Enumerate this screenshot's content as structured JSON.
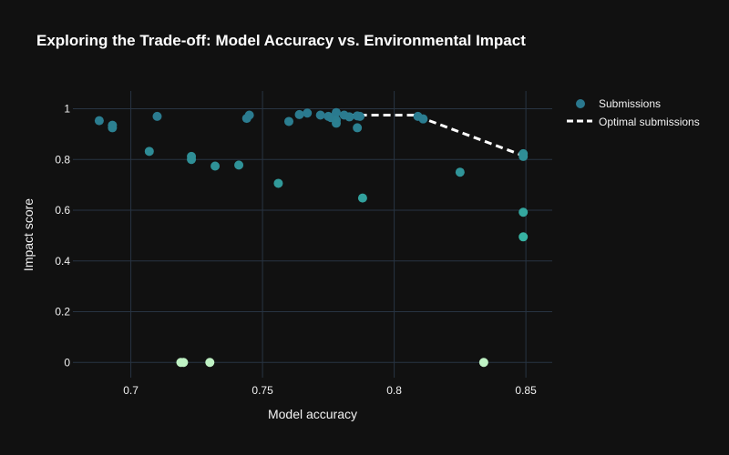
{
  "chart_data": {
    "type": "scatter",
    "title": "Exploring the Trade-off: Model Accuracy vs. Environmental Impact",
    "xlabel": "Model accuracy",
    "ylabel": "Impact score",
    "xlim": [
      0.678,
      0.86
    ],
    "ylim": [
      -0.06,
      1.07
    ],
    "x_ticks": [
      0.7,
      0.75,
      0.8,
      0.85
    ],
    "x_tick_labels": [
      "0.7",
      "0.75",
      "0.8",
      "0.85"
    ],
    "y_ticks": [
      0,
      0.2,
      0.4,
      0.6,
      0.8,
      1
    ],
    "y_tick_labels": [
      "0",
      "0.2",
      "0.4",
      "0.6",
      "0.8",
      "1"
    ],
    "grid": true,
    "legend_position": "top-right",
    "colors": {
      "background": "#111111",
      "grid": "#283442",
      "text": "#f2f2f2",
      "marker_low": "#2a788e",
      "marker_mid": "#36b2a3",
      "marker_high": "#bff2c4",
      "frontier_line": "#ffffff"
    },
    "series": [
      {
        "name": "Submissions",
        "mode": "markers",
        "points": [
          {
            "x": 0.688,
            "y": 0.953
          },
          {
            "x": 0.693,
            "y": 0.935
          },
          {
            "x": 0.693,
            "y": 0.925
          },
          {
            "x": 0.707,
            "y": 0.832
          },
          {
            "x": 0.71,
            "y": 0.97
          },
          {
            "x": 0.719,
            "y": 0.0
          },
          {
            "x": 0.72,
            "y": 0.0
          },
          {
            "x": 0.723,
            "y": 0.812
          },
          {
            "x": 0.723,
            "y": 0.8
          },
          {
            "x": 0.73,
            "y": 0.0
          },
          {
            "x": 0.732,
            "y": 0.774
          },
          {
            "x": 0.741,
            "y": 0.778
          },
          {
            "x": 0.744,
            "y": 0.962
          },
          {
            "x": 0.745,
            "y": 0.975
          },
          {
            "x": 0.756,
            "y": 0.706
          },
          {
            "x": 0.76,
            "y": 0.95
          },
          {
            "x": 0.764,
            "y": 0.977
          },
          {
            "x": 0.767,
            "y": 0.983
          },
          {
            "x": 0.772,
            "y": 0.975
          },
          {
            "x": 0.775,
            "y": 0.97
          },
          {
            "x": 0.776,
            "y": 0.965
          },
          {
            "x": 0.778,
            "y": 0.985
          },
          {
            "x": 0.778,
            "y": 0.955
          },
          {
            "x": 0.778,
            "y": 0.943
          },
          {
            "x": 0.781,
            "y": 0.975
          },
          {
            "x": 0.783,
            "y": 0.968
          },
          {
            "x": 0.786,
            "y": 0.972
          },
          {
            "x": 0.786,
            "y": 0.925
          },
          {
            "x": 0.787,
            "y": 0.97
          },
          {
            "x": 0.788,
            "y": 0.648
          },
          {
            "x": 0.809,
            "y": 0.97
          },
          {
            "x": 0.811,
            "y": 0.96
          },
          {
            "x": 0.825,
            "y": 0.75
          },
          {
            "x": 0.834,
            "y": 0.0
          },
          {
            "x": 0.849,
            "y": 0.823
          },
          {
            "x": 0.849,
            "y": 0.812
          },
          {
            "x": 0.849,
            "y": 0.592
          },
          {
            "x": 0.849,
            "y": 0.495
          }
        ]
      },
      {
        "name": "Optimal submissions",
        "mode": "lines",
        "dash": "dash",
        "points": [
          {
            "x": 0.778,
            "y": 0.985
          },
          {
            "x": 0.781,
            "y": 0.975
          },
          {
            "x": 0.809,
            "y": 0.975
          },
          {
            "x": 0.811,
            "y": 0.962
          },
          {
            "x": 0.849,
            "y": 0.815
          }
        ]
      }
    ]
  }
}
